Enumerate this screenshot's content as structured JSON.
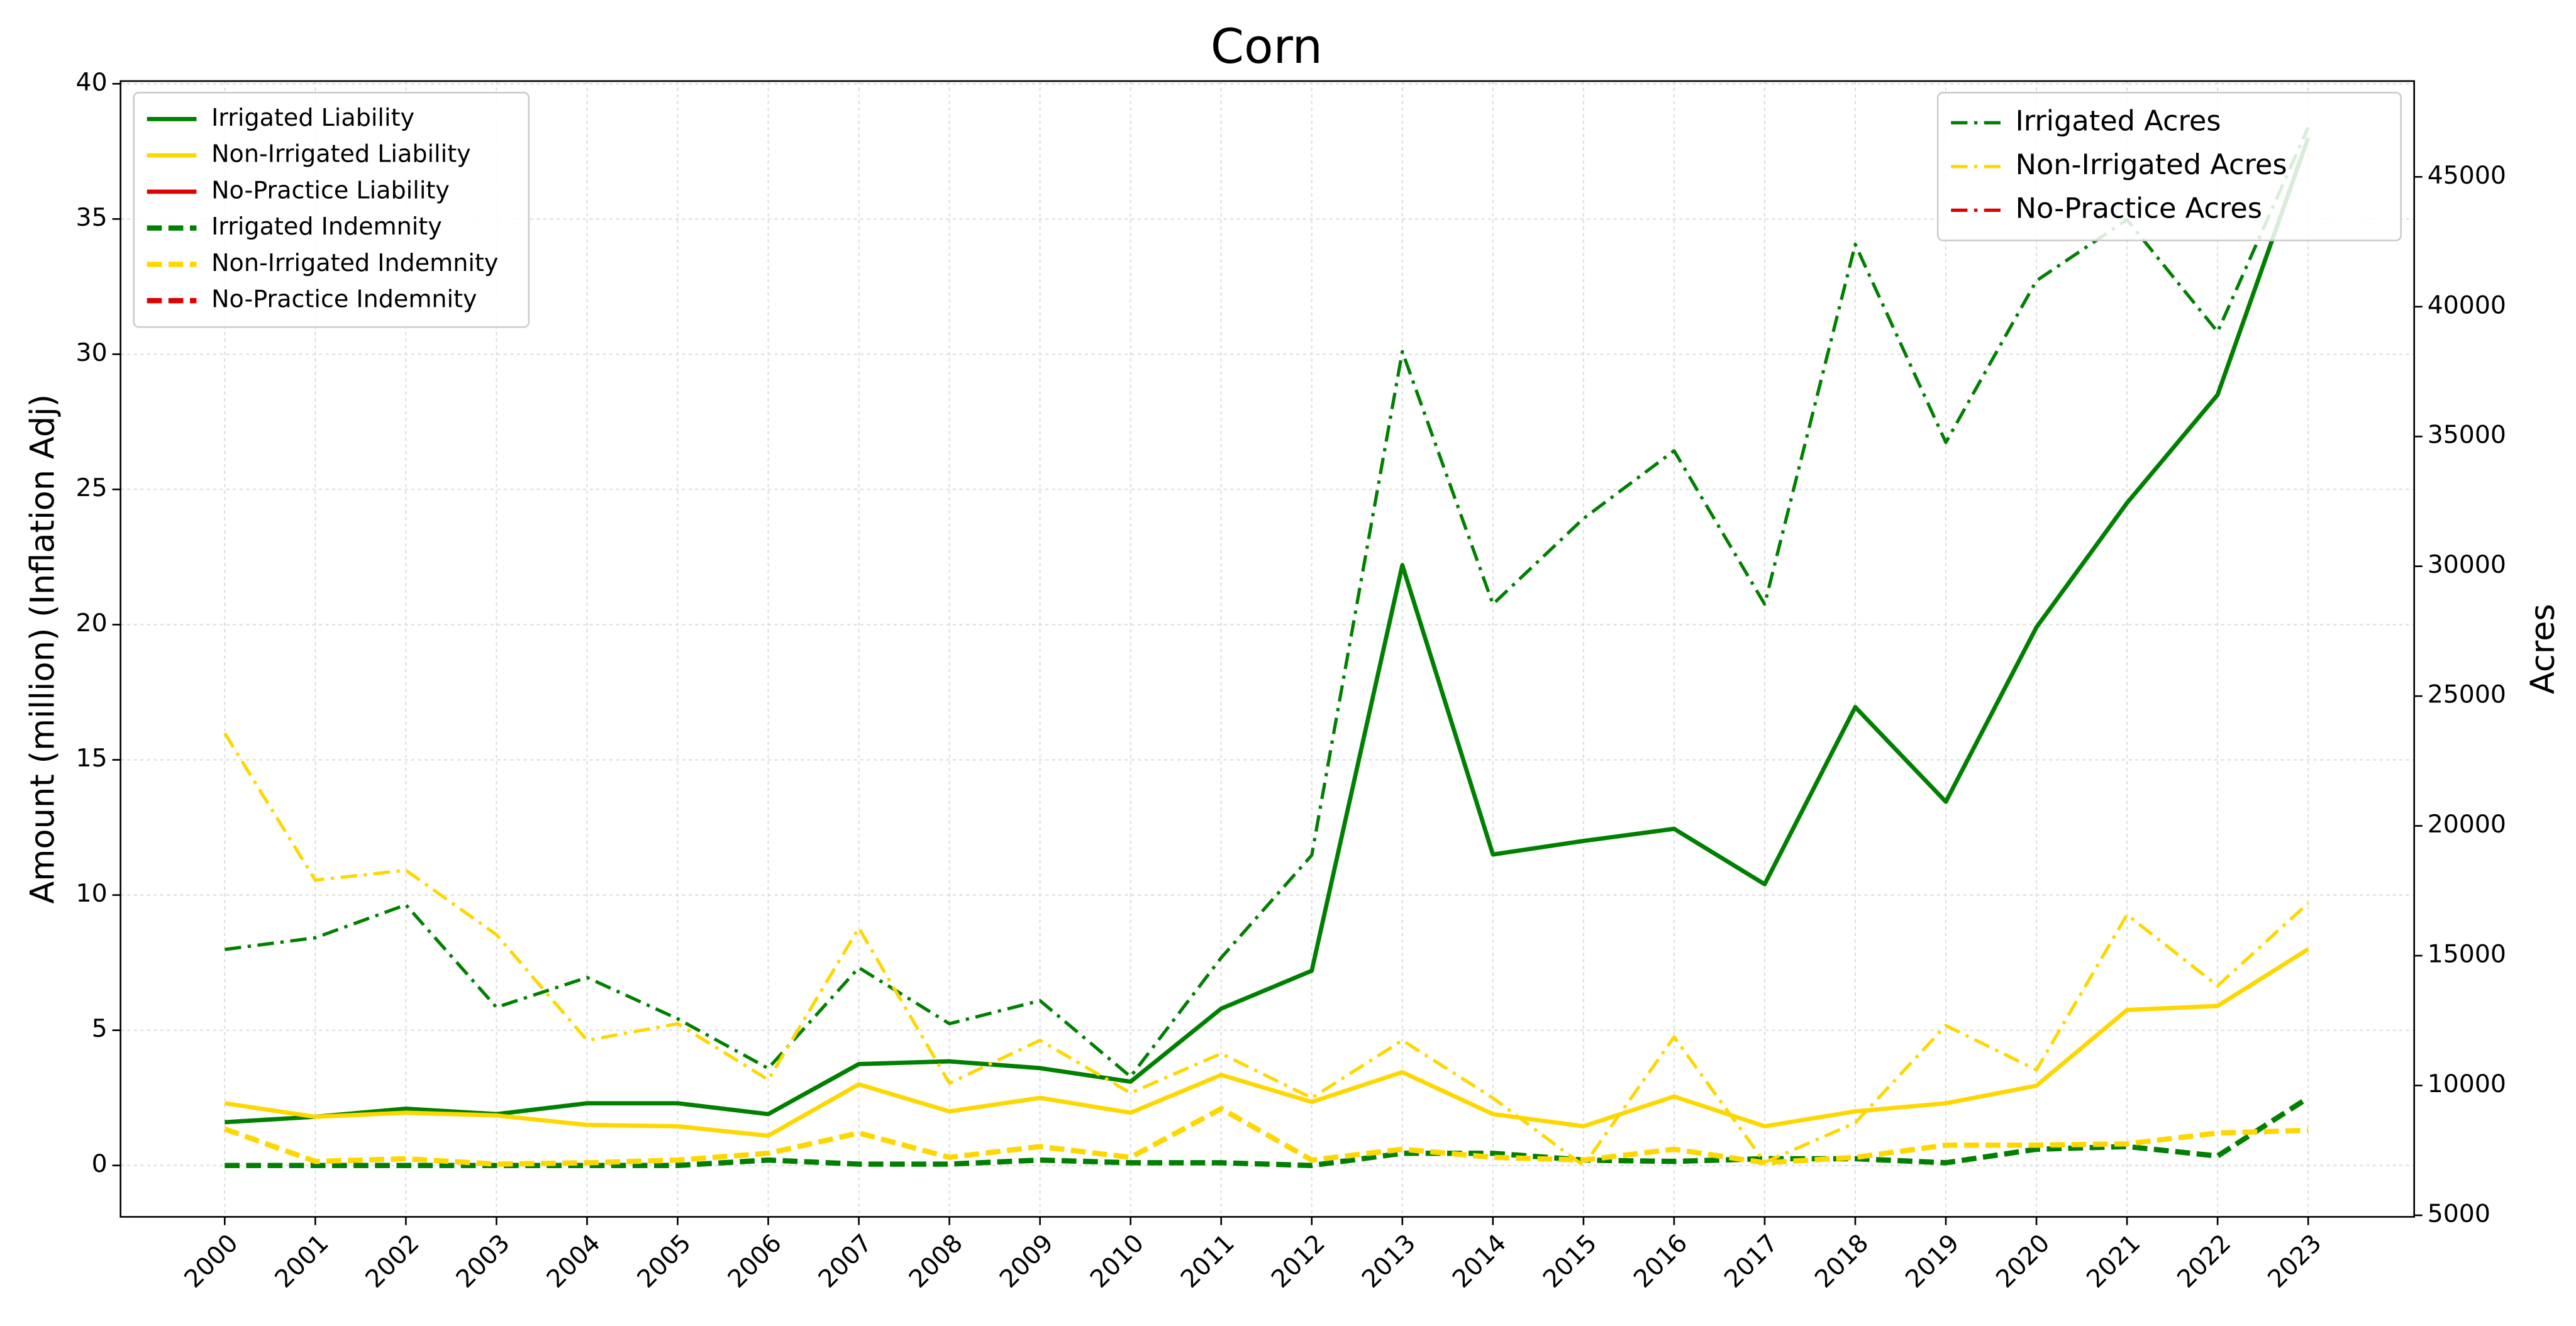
{
  "chart_data": {
    "type": "line",
    "title": "Corn",
    "ylabel": "Amount (million) (Inflation Adj)",
    "y2label": "Acres",
    "x": [
      2000,
      2001,
      2002,
      2003,
      2004,
      2005,
      2006,
      2007,
      2008,
      2009,
      2010,
      2011,
      2012,
      2013,
      2014,
      2015,
      2016,
      2017,
      2018,
      2019,
      2020,
      2021,
      2022,
      2023
    ],
    "xlim": [
      1998.85,
      2024.17
    ],
    "xticks": [
      2000,
      2001,
      2002,
      2003,
      2004,
      2005,
      2006,
      2007,
      2008,
      2009,
      2010,
      2011,
      2012,
      2013,
      2014,
      2015,
      2016,
      2017,
      2018,
      2019,
      2020,
      2021,
      2022,
      2023
    ],
    "ylim": [
      -1.9,
      40.1
    ],
    "yticks": [
      0,
      5,
      10,
      15,
      20,
      25,
      30,
      35,
      40
    ],
    "y2lim": [
      4940,
      48690
    ],
    "y2ticks": [
      5000,
      10000,
      15000,
      20000,
      25000,
      30000,
      35000,
      40000,
      45000
    ],
    "grid": true,
    "legend": "upper left",
    "legend2": "upper right",
    "series": [
      {
        "name": "Irrigated Liability",
        "color": "#008000",
        "style": "solid",
        "values": [
          1.6,
          1.8,
          2.1,
          1.9,
          2.3,
          2.3,
          1.9,
          3.75,
          3.85,
          3.6,
          3.1,
          5.8,
          7.2,
          22.2,
          11.5,
          12.0,
          12.45,
          10.4,
          16.95,
          13.45,
          19.9,
          24.5,
          28.5,
          38.0
        ]
      },
      {
        "name": "Non-Irrigated Liability",
        "color": "#ffd700",
        "style": "solid",
        "values": [
          2.3,
          1.8,
          1.95,
          1.85,
          1.5,
          1.45,
          1.1,
          3.0,
          2.0,
          2.5,
          1.95,
          3.35,
          2.35,
          3.45,
          1.9,
          1.45,
          2.55,
          1.45,
          2.0,
          2.3,
          2.95,
          5.75,
          5.9,
          8.0
        ]
      },
      {
        "name": "No-Practice Liability",
        "color": "#e00000",
        "style": "solid",
        "values": [
          null,
          null,
          null,
          null,
          null,
          null,
          null,
          null,
          null,
          null,
          null,
          null,
          null,
          null,
          null,
          null,
          null,
          null,
          null,
          null,
          null,
          null,
          null,
          null
        ]
      },
      {
        "name": "Irrigated Indemnity",
        "color": "#008000",
        "style": "dashed",
        "values": [
          0,
          0,
          0,
          0,
          0,
          0,
          0.2,
          0.05,
          0.05,
          0.2,
          0.1,
          0.1,
          0,
          0.45,
          0.45,
          0.2,
          0.15,
          0.25,
          0.25,
          0.1,
          0.6,
          0.7,
          0.35,
          2.5
        ]
      },
      {
        "name": "Non-Irrigated Indemnity",
        "color": "#ffd700",
        "style": "dashed",
        "values": [
          1.35,
          0.15,
          0.25,
          0.05,
          0.1,
          0.2,
          0.45,
          1.2,
          0.3,
          0.7,
          0.3,
          2.1,
          0.2,
          0.6,
          0.3,
          0.2,
          0.6,
          0.1,
          0.3,
          0.75,
          0.75,
          0.8,
          1.2,
          1.3
        ]
      },
      {
        "name": "No-Practice Indemnity",
        "color": "#e00000",
        "style": "dashed",
        "values": [
          null,
          null,
          null,
          null,
          null,
          null,
          null,
          null,
          null,
          null,
          null,
          null,
          null,
          null,
          null,
          null,
          null,
          null,
          null,
          null,
          null,
          null,
          null,
          null
        ]
      },
      {
        "name": "Irrigated Acres",
        "color": "#008000",
        "style": "dashdot",
        "axis": "y2",
        "values": [
          15240,
          15690,
          16960,
          13010,
          14160,
          12570,
          10660,
          14540,
          12380,
          13270,
          10340,
          14920,
          18870,
          38270,
          28540,
          31840,
          34450,
          28540,
          42400,
          34770,
          41000,
          43350,
          39030,
          46910
        ]
      },
      {
        "name": "Non-Irrigated Acres",
        "color": "#ffd700",
        "style": "dashdot",
        "axis": "y2",
        "values": [
          23570,
          17910,
          18290,
          15810,
          11740,
          12380,
          10220,
          16070,
          10090,
          11740,
          9710,
          11230,
          9520,
          11740,
          9520,
          6910,
          11870,
          7040,
          8560,
          12310,
          10600,
          16580,
          13840,
          17020
        ]
      },
      {
        "name": "No-Practice Acres",
        "color": "#e00000",
        "style": "dashdot",
        "axis": "y2",
        "values": [
          null,
          null,
          null,
          null,
          null,
          null,
          null,
          null,
          null,
          null,
          null,
          null,
          null,
          null,
          null,
          null,
          null,
          null,
          null,
          null,
          null,
          null,
          null,
          null
        ]
      }
    ]
  }
}
